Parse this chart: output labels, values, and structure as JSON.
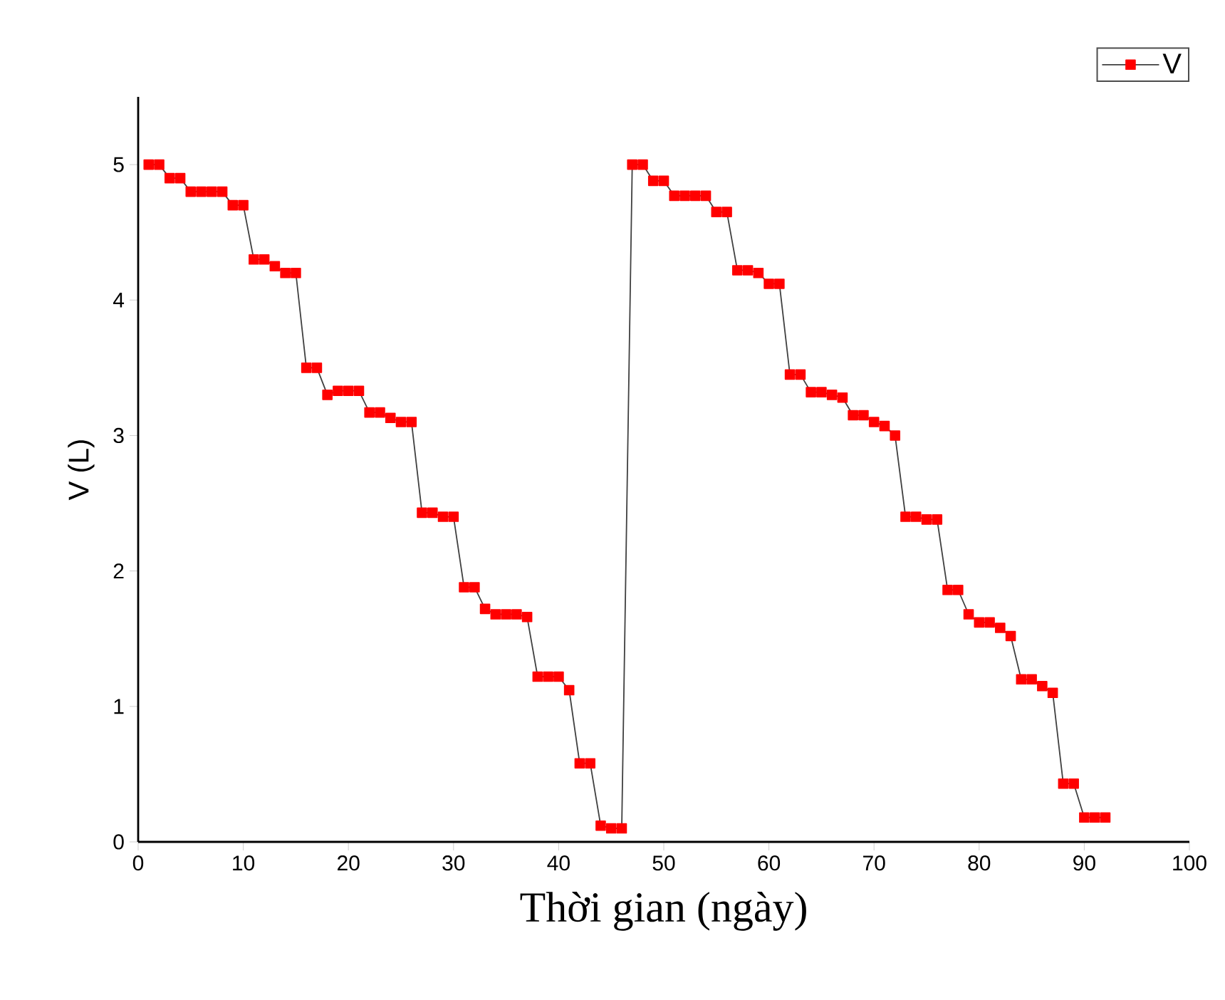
{
  "chart_data": {
    "type": "line",
    "xlabel": "Thời gian (ngày)",
    "ylabel": "V (L)",
    "xlim": [
      0,
      100
    ],
    "ylim": [
      0,
      5.5
    ],
    "xticks": [
      0,
      10,
      20,
      30,
      40,
      50,
      60,
      70,
      80,
      90,
      100
    ],
    "yticks": [
      0,
      1,
      2,
      3,
      4,
      5
    ],
    "x": [
      1,
      2,
      3,
      4,
      5,
      6,
      7,
      8,
      9,
      10,
      11,
      12,
      13,
      14,
      15,
      16,
      17,
      18,
      19,
      20,
      21,
      22,
      23,
      24,
      25,
      26,
      27,
      28,
      29,
      30,
      31,
      32,
      33,
      34,
      35,
      36,
      37,
      38,
      39,
      40,
      41,
      42,
      43,
      44,
      45,
      46,
      47,
      48,
      49,
      50,
      51,
      52,
      53,
      54,
      55,
      56,
      57,
      58,
      59,
      60,
      61,
      62,
      63,
      64,
      65,
      66,
      67,
      68,
      69,
      70,
      71,
      72,
      73,
      74,
      75,
      76,
      77,
      78,
      79,
      80,
      81,
      82,
      83,
      84,
      85,
      86,
      87,
      88,
      89,
      90,
      91,
      92
    ],
    "series": [
      {
        "name": "V",
        "color": "#ff0000",
        "values": [
          5.0,
          5.0,
          4.9,
          4.9,
          4.8,
          4.8,
          4.8,
          4.8,
          4.7,
          4.7,
          4.3,
          4.3,
          4.25,
          4.2,
          4.2,
          3.5,
          3.5,
          3.3,
          3.33,
          3.33,
          3.33,
          3.17,
          3.17,
          3.13,
          3.1,
          3.1,
          2.43,
          2.43,
          2.4,
          2.4,
          1.88,
          1.88,
          1.72,
          1.68,
          1.68,
          1.68,
          1.66,
          1.22,
          1.22,
          1.22,
          1.12,
          0.58,
          0.58,
          0.12,
          0.1,
          0.1,
          5.0,
          5.0,
          4.88,
          4.88,
          4.77,
          4.77,
          4.77,
          4.77,
          4.65,
          4.65,
          4.22,
          4.22,
          4.2,
          4.12,
          4.12,
          3.45,
          3.45,
          3.32,
          3.32,
          3.3,
          3.28,
          3.15,
          3.15,
          3.1,
          3.07,
          3.0,
          2.4,
          2.4,
          2.38,
          2.38,
          1.86,
          1.86,
          1.68,
          1.62,
          1.62,
          1.58,
          1.52,
          1.2,
          1.2,
          1.15,
          1.1,
          0.43,
          0.43,
          0.18,
          0.18,
          0.18
        ]
      }
    ],
    "marker": "square",
    "line_style": "solid",
    "legend": "top right",
    "grid": false
  }
}
